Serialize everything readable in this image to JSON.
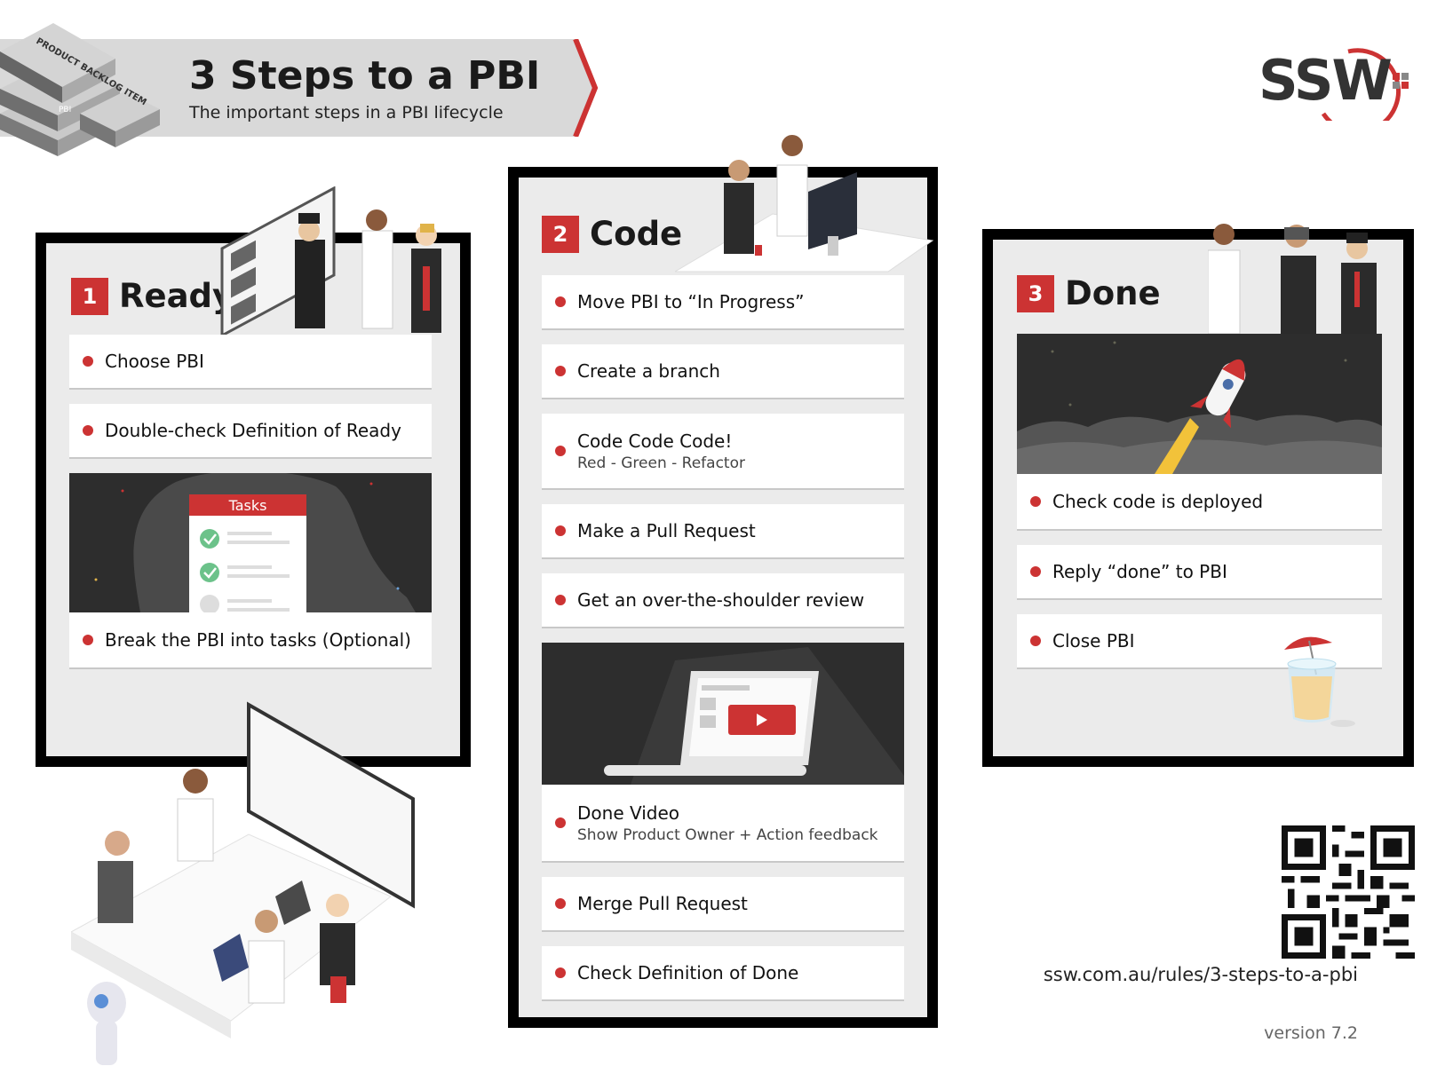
{
  "header": {
    "title": "3 Steps to a PBI",
    "subtitle": "The important steps in a PBI lifecycle",
    "box_label": "PRODUCT BACKLOG ITEM",
    "box_tag": "PBI"
  },
  "logo": {
    "text": "SSW"
  },
  "steps": [
    {
      "number": "1",
      "title": "Ready",
      "items": [
        {
          "label": "Choose PBI"
        },
        {
          "label": "Double-check Definition of Ready"
        },
        {
          "label": "Break the PBI into tasks (Optional)"
        }
      ],
      "tasks_card_title": "Tasks"
    },
    {
      "number": "2",
      "title": "Code",
      "items": [
        {
          "label": "Move PBI to “In Progress”"
        },
        {
          "label": "Create a branch"
        },
        {
          "label": "Code Code Code!",
          "sub": "Red - Green - Refactor"
        },
        {
          "label": "Make a Pull Request"
        },
        {
          "label": "Get an over-the-shoulder review"
        },
        {
          "label": "Done Video",
          "sub": "Show Product Owner + Action feedback"
        },
        {
          "label": "Merge Pull Request"
        },
        {
          "label": "Check Definition of Done"
        }
      ]
    },
    {
      "number": "3",
      "title": "Done",
      "items": [
        {
          "label": "Check code is deployed"
        },
        {
          "label": "Reply “done” to PBI"
        },
        {
          "label": "Close PBI"
        }
      ]
    }
  ],
  "footer": {
    "url": "ssw.com.au/rules/3-steps-to-a-pbi",
    "version": "version 7.2"
  },
  "colors": {
    "accent": "#cc3333",
    "panel_bg": "#ebebeb",
    "dark_bg": "#2d2d2d"
  }
}
